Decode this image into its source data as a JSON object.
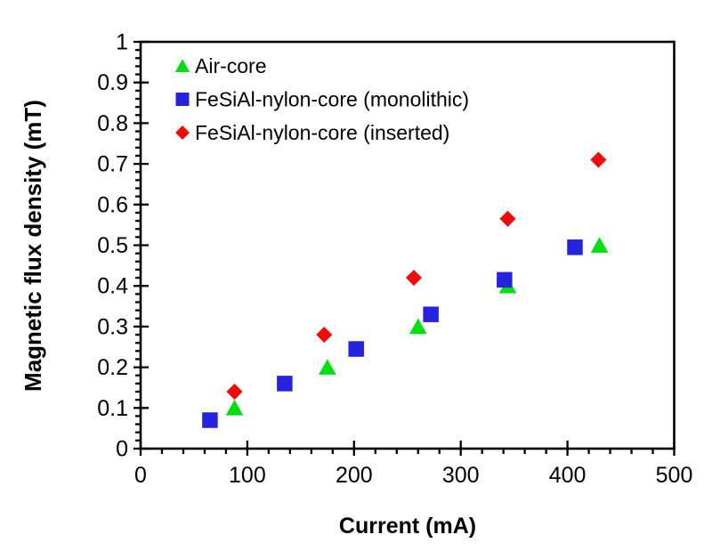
{
  "figure": {
    "background": "#ffffff",
    "frame_color": "#000000"
  },
  "chart_data": {
    "type": "scatter",
    "title": "",
    "xlabel": "Current (mA)",
    "ylabel": "Magnetic flux density (mT)",
    "xlim": [
      0,
      500
    ],
    "ylim": [
      0,
      1
    ],
    "x_major_tick": 100,
    "x_minor_tick": 20,
    "y_major_tick": 0.1,
    "y_minor_tick": 0.02,
    "x_tick_labels": [
      "0",
      "100",
      "200",
      "300",
      "400",
      "500"
    ],
    "y_tick_labels": [
      "0",
      "0.1",
      "0.2",
      "0.3",
      "0.4",
      "0.5",
      "0.6",
      "0.7",
      "0.8",
      "0.9",
      "1"
    ],
    "grid": false,
    "legend_position": "inside-top-left",
    "series": [
      {
        "name": "Air-core",
        "marker": "triangle",
        "color": "#00DF10",
        "points": [
          [
            88,
            0.1
          ],
          [
            175,
            0.2
          ],
          [
            260,
            0.3
          ],
          [
            344,
            0.4
          ],
          [
            430,
            0.5
          ]
        ]
      },
      {
        "name": "FeSiAl-nylon-core (monolithic)",
        "marker": "square",
        "color": "#2424DE",
        "points": [
          [
            65,
            0.07
          ],
          [
            135,
            0.16
          ],
          [
            202,
            0.245
          ],
          [
            272,
            0.33
          ],
          [
            341,
            0.415
          ],
          [
            407,
            0.495
          ]
        ]
      },
      {
        "name": "FeSiAl-nylon-core (inserted)",
        "marker": "diamond",
        "color": "#EE0C0C",
        "points": [
          [
            88,
            0.14
          ],
          [
            172,
            0.28
          ],
          [
            256,
            0.42
          ],
          [
            344,
            0.565
          ],
          [
            429,
            0.71
          ]
        ]
      }
    ]
  }
}
